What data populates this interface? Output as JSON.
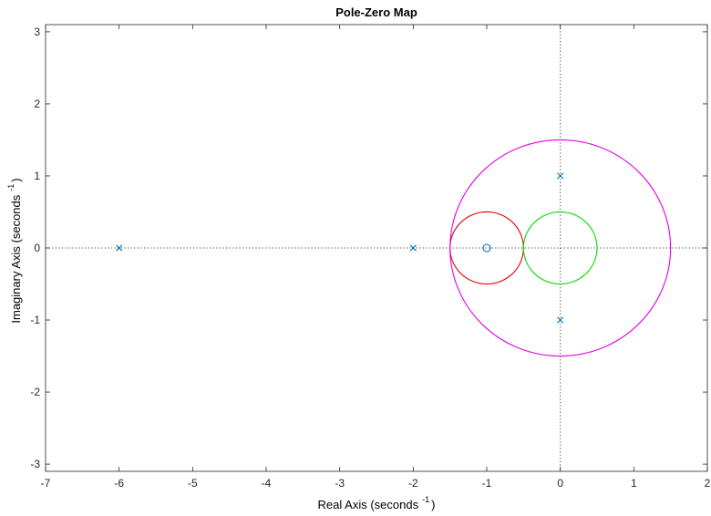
{
  "chart_data": {
    "type": "scatter",
    "title": "Pole-Zero Map",
    "xlabel": {
      "text": "Real Axis (seconds",
      "superscript": "-1",
      "close": ")"
    },
    "ylabel": {
      "text": "Imaginary Axis (seconds",
      "superscript": "-1",
      "close": ")"
    },
    "xlim": [
      -7,
      2
    ],
    "ylim": [
      -3.1,
      3.1
    ],
    "xticks": [
      -7,
      -6,
      -5,
      -4,
      -3,
      -2,
      -1,
      0,
      1,
      2
    ],
    "yticks": [
      -3,
      -2,
      -1,
      0,
      1,
      2,
      3
    ],
    "grid": false,
    "reference_lines": {
      "x": 0,
      "y": 0,
      "style": "dotted",
      "color": "#444444"
    },
    "marker_color": "#0072bd",
    "poles": [
      {
        "x": -6,
        "y": 0
      },
      {
        "x": -2,
        "y": 0
      },
      {
        "x": 0,
        "y": 1
      },
      {
        "x": 0,
        "y": -1
      }
    ],
    "zeros": [
      {
        "x": -1,
        "y": 0
      }
    ],
    "circles": [
      {
        "cx": -1,
        "cy": 0,
        "r": 0.5,
        "color": "#e00000"
      },
      {
        "cx": 0,
        "cy": 0,
        "r": 0.5,
        "color": "#00dd00"
      },
      {
        "cx": 0,
        "cy": 0,
        "r": 1.5,
        "color": "#e600e6"
      }
    ]
  }
}
